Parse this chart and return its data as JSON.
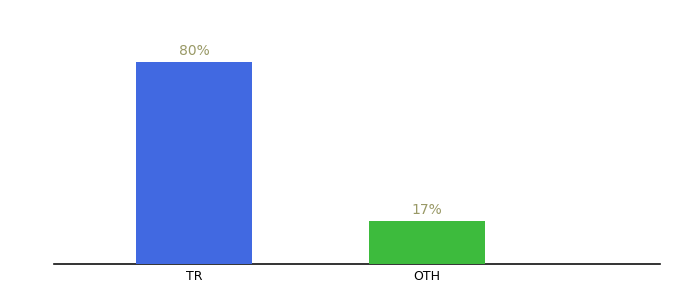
{
  "categories": [
    "TR",
    "OTH"
  ],
  "values": [
    80,
    17
  ],
  "bar_colors": [
    "#4169e1",
    "#3dbb3d"
  ],
  "label_texts": [
    "80%",
    "17%"
  ],
  "background_color": "#ffffff",
  "ylim": [
    0,
    95
  ],
  "bar_width": 0.5,
  "label_fontsize": 10,
  "tick_fontsize": 9,
  "axis_line_color": "#111111",
  "label_color": "#999966",
  "x_positions": [
    0,
    1
  ],
  "xlim": [
    -0.6,
    2.0
  ]
}
